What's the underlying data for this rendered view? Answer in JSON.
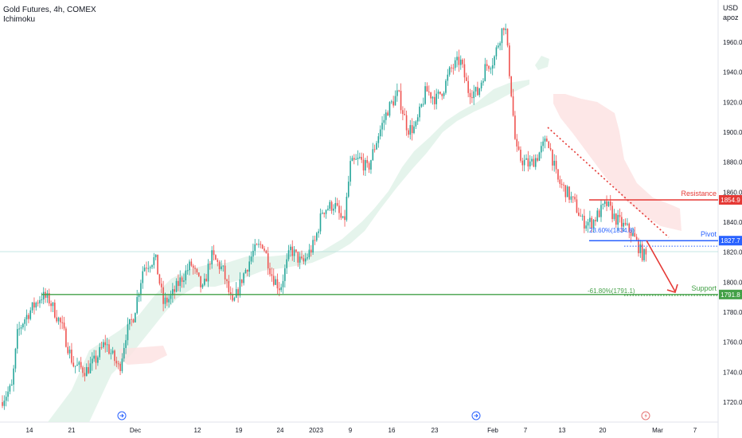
{
  "header": {
    "title": "Gold Futures, 4h, COMEX",
    "indicator": "Ichimoku"
  },
  "price_scale": {
    "currency": "USD",
    "author": "apoz"
  },
  "colors": {
    "up": "#26a69a",
    "down": "#ef5350",
    "resistance": "#e53935",
    "pivot": "#2962ff",
    "support": "#43a047",
    "cloud_bull": "#e0f2e9",
    "cloud_bear": "#fde3e3",
    "grid": "#ffffff",
    "axis_text": "#131722"
  },
  "icons": [
    "event-arrow-icon",
    "event-arrow-icon",
    "lightning-icon"
  ],
  "chart_data": {
    "type": "candlestick",
    "title": "Gold Futures, 4h, COMEX",
    "y_ticks": [
      1720,
      1740,
      1760,
      1780,
      1800,
      1820,
      1840,
      1860,
      1880,
      1900,
      1920,
      1940,
      1960
    ],
    "ylim": [
      1710,
      1985
    ],
    "x_ticks": [
      "14",
      "21",
      "Dec",
      "12",
      "19",
      "24",
      "2023",
      "9",
      "16",
      "23",
      "Feb",
      "7",
      "13",
      "20",
      "Mar",
      "7"
    ],
    "levels": [
      {
        "name": "Resistance",
        "value": 1854.9,
        "label": "1854.9"
      },
      {
        "name": "Pivot",
        "value": 1827.7,
        "label": "1827.7"
      },
      {
        "name": "Support",
        "value": 1791.8,
        "label": "1791.8"
      }
    ],
    "fib_labels": [
      {
        "text": "23.60%(1834.8)",
        "value": 1834.8
      },
      {
        "text": "-61.80%(1791.1)",
        "value": 1791.1
      }
    ],
    "path": [
      [
        0,
        1720
      ],
      [
        15,
        1730
      ],
      [
        22,
        1766
      ],
      [
        30,
        1775
      ],
      [
        38,
        1781
      ],
      [
        52,
        1791
      ],
      [
        62,
        1788
      ],
      [
        78,
        1770
      ],
      [
        92,
        1745
      ],
      [
        108,
        1741
      ],
      [
        120,
        1748
      ],
      [
        132,
        1760
      ],
      [
        150,
        1742
      ],
      [
        158,
        1765
      ],
      [
        168,
        1778
      ],
      [
        180,
        1810
      ],
      [
        195,
        1816
      ],
      [
        205,
        1786
      ],
      [
        215,
        1790
      ],
      [
        225,
        1800
      ],
      [
        240,
        1812
      ],
      [
        255,
        1794
      ],
      [
        265,
        1818
      ],
      [
        280,
        1808
      ],
      [
        292,
        1784
      ],
      [
        305,
        1804
      ],
      [
        318,
        1820
      ],
      [
        330,
        1826
      ],
      [
        342,
        1804
      ],
      [
        352,
        1796
      ],
      [
        365,
        1822
      ],
      [
        380,
        1812
      ],
      [
        395,
        1826
      ],
      [
        405,
        1848
      ],
      [
        420,
        1852
      ],
      [
        432,
        1838
      ],
      [
        440,
        1878
      ],
      [
        452,
        1882
      ],
      [
        462,
        1875
      ],
      [
        475,
        1898
      ],
      [
        487,
        1915
      ],
      [
        500,
        1926
      ],
      [
        512,
        1902
      ],
      [
        522,
        1903
      ],
      [
        535,
        1928
      ],
      [
        548,
        1922
      ],
      [
        558,
        1930
      ],
      [
        566,
        1942
      ],
      [
        578,
        1948
      ],
      [
        588,
        1928
      ],
      [
        600,
        1926
      ],
      [
        610,
        1944
      ],
      [
        620,
        1948
      ],
      [
        627,
        1962
      ],
      [
        634,
        1974
      ],
      [
        642,
        1928
      ],
      [
        648,
        1888
      ],
      [
        654,
        1882
      ],
      [
        665,
        1878
      ],
      [
        675,
        1884
      ],
      [
        688,
        1896
      ],
      [
        700,
        1868
      ],
      [
        712,
        1860
      ],
      [
        722,
        1852
      ],
      [
        732,
        1840
      ],
      [
        744,
        1840
      ],
      [
        752,
        1846
      ],
      [
        762,
        1852
      ],
      [
        772,
        1843
      ],
      [
        782,
        1838
      ],
      [
        792,
        1834
      ],
      [
        800,
        1826
      ],
      [
        806,
        1819
      ],
      [
        812,
        1817
      ]
    ]
  }
}
